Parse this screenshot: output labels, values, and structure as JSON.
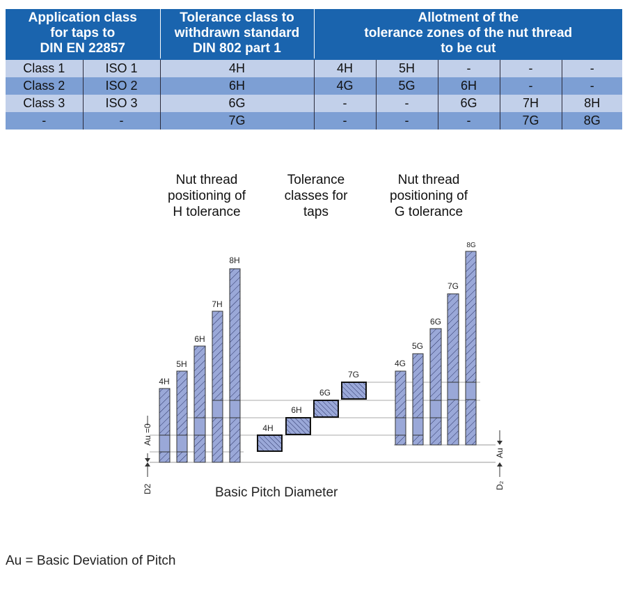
{
  "table": {
    "headers": [
      {
        "lines": [
          "Application class",
          "for taps to",
          "DIN EN 22857"
        ]
      },
      {
        "lines": [
          "Tolerance class to",
          "withdrawn standard",
          "DIN 802 part 1"
        ]
      },
      {
        "lines": [
          "Allotment of the",
          "tolerance zones of the nut thread",
          "to be cut"
        ]
      }
    ],
    "rows": [
      [
        "Class 1",
        "ISO 1",
        "4H",
        "4H",
        "5H",
        "-",
        "-",
        "-"
      ],
      [
        "Class 2",
        "ISO 2",
        "6H",
        "4G",
        "5G",
        "6H",
        "-",
        "-"
      ],
      [
        "Class 3",
        "ISO 3",
        "6G",
        "-",
        "-",
        "6G",
        "7H",
        "8H"
      ],
      [
        "-",
        "-",
        "7G",
        "-",
        "-",
        "-",
        "7G",
        "8G"
      ]
    ]
  },
  "diagram": {
    "group_titles": {
      "h": [
        "Nut thread",
        "positioning of",
        "H tolerance"
      ],
      "taps": [
        "Tolerance",
        "classes for",
        "taps"
      ],
      "g": [
        "Nut thread",
        "positioning of",
        "G tolerance"
      ]
    },
    "h_bars": [
      "4H",
      "5H",
      "6H",
      "7H",
      "8H"
    ],
    "tap_bars": [
      "4H",
      "6H",
      "6G",
      "7G"
    ],
    "g_bars": [
      "4G",
      "5G",
      "6G",
      "7G",
      "8G"
    ],
    "au_zero_label": "Au =0",
    "d2_left_label": "D2",
    "au_right_label": "Au",
    "d2_right_label": "D₂",
    "basic_pitch_label": "Basic Pitch Diameter",
    "colors": {
      "bar_fill": "#9aa8d8",
      "hatch": "#2a3266",
      "header_blue": "#1a64ae"
    }
  },
  "footnote": "Au = Basic Deviation of Pitch"
}
